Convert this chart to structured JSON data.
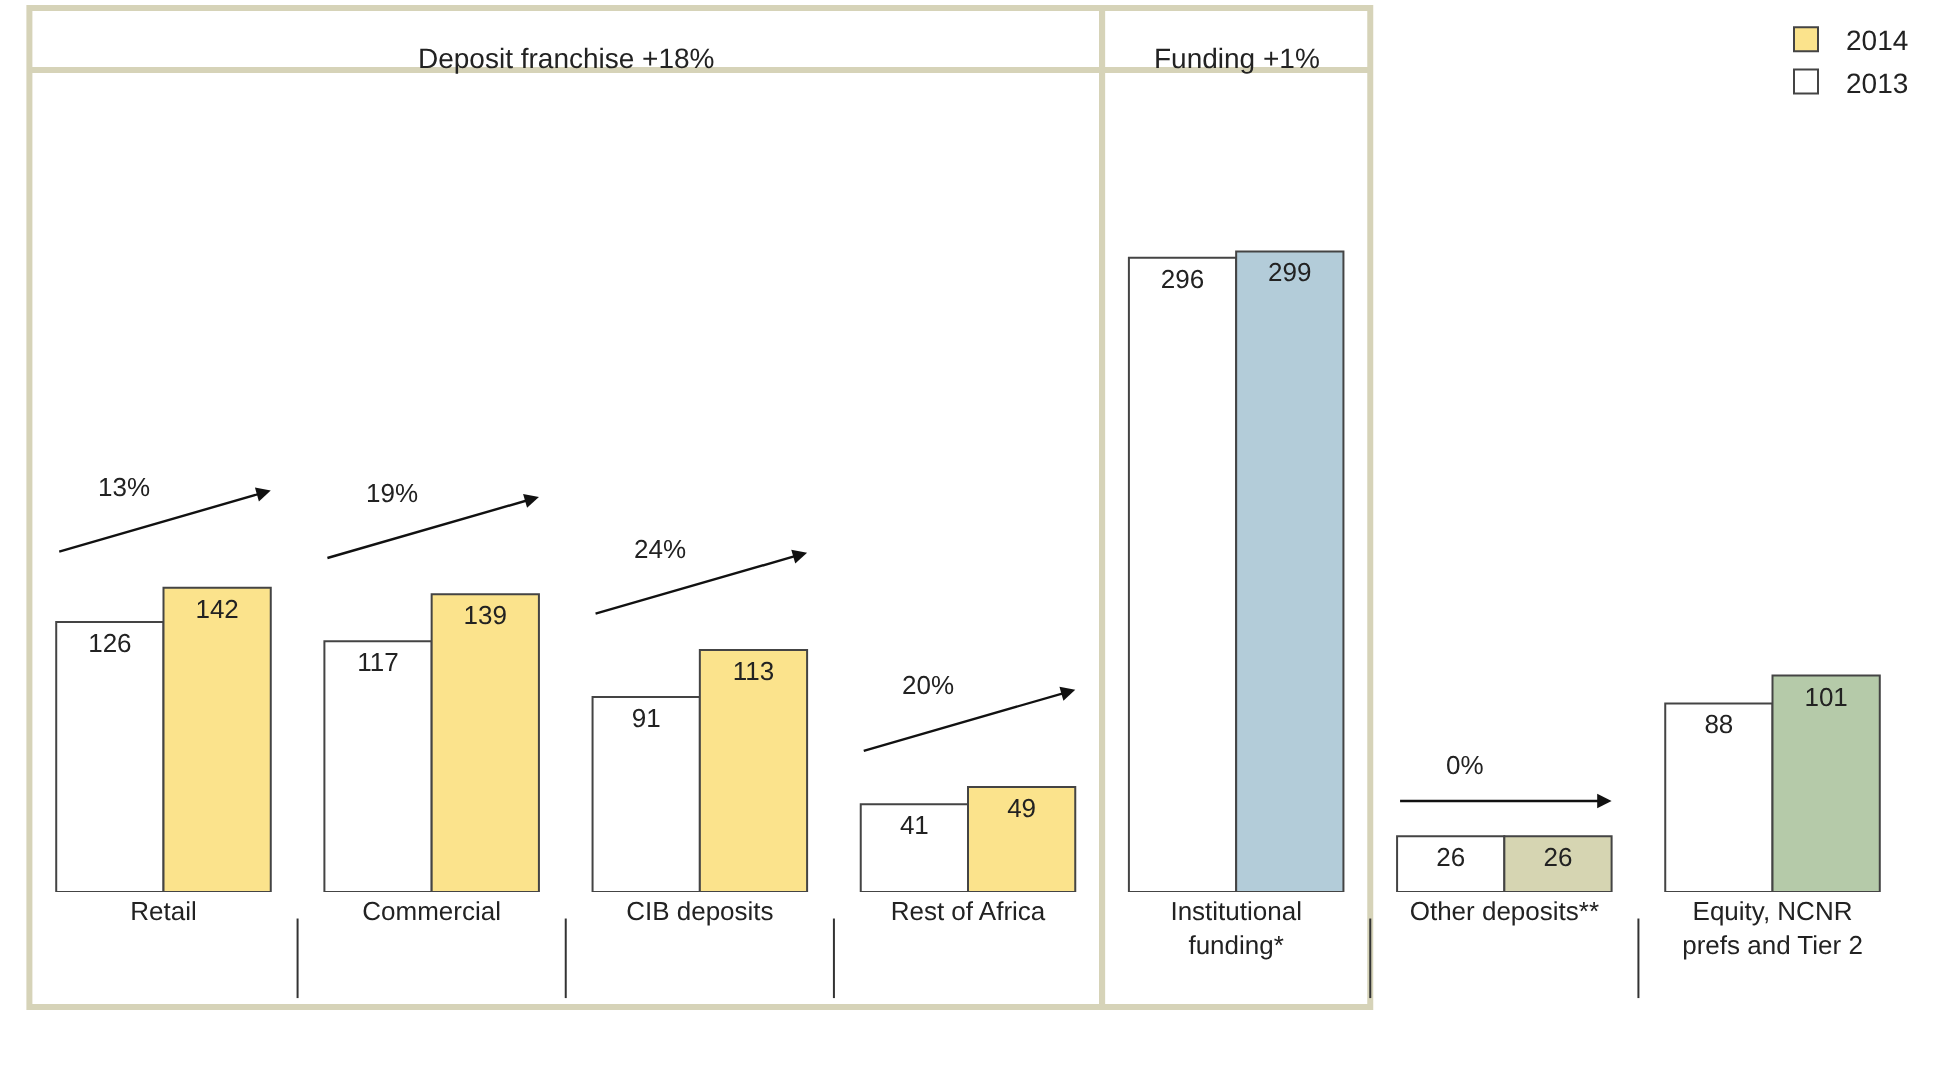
{
  "chart_data": {
    "type": "bar",
    "categories": [
      "Retail",
      "Commercial",
      "CIB deposits",
      "Rest of Africa",
      "Institutional\nfunding*",
      "Other deposits**",
      "Equity, NCNR\nprefs and Tier 2"
    ],
    "series": [
      {
        "name": "2013",
        "color": "#ffffff",
        "values": [
          126,
          117,
          91,
          41,
          296,
          26,
          88
        ]
      },
      {
        "name": "2014",
        "colors": [
          "#fbe38c",
          "#fbe38c",
          "#fbe38c",
          "#fbe38c",
          "#b3ccd9",
          "#d6d5b2",
          "#b5caa9"
        ],
        "values": [
          142,
          139,
          113,
          49,
          299,
          26,
          101
        ]
      }
    ],
    "annotations": [
      "Deposit franchise +18%",
      "Funding +1%",
      "13%",
      "19%",
      "24%",
      "20%",
      "0%"
    ],
    "data_labels": true,
    "legend": "top right"
  }
}
